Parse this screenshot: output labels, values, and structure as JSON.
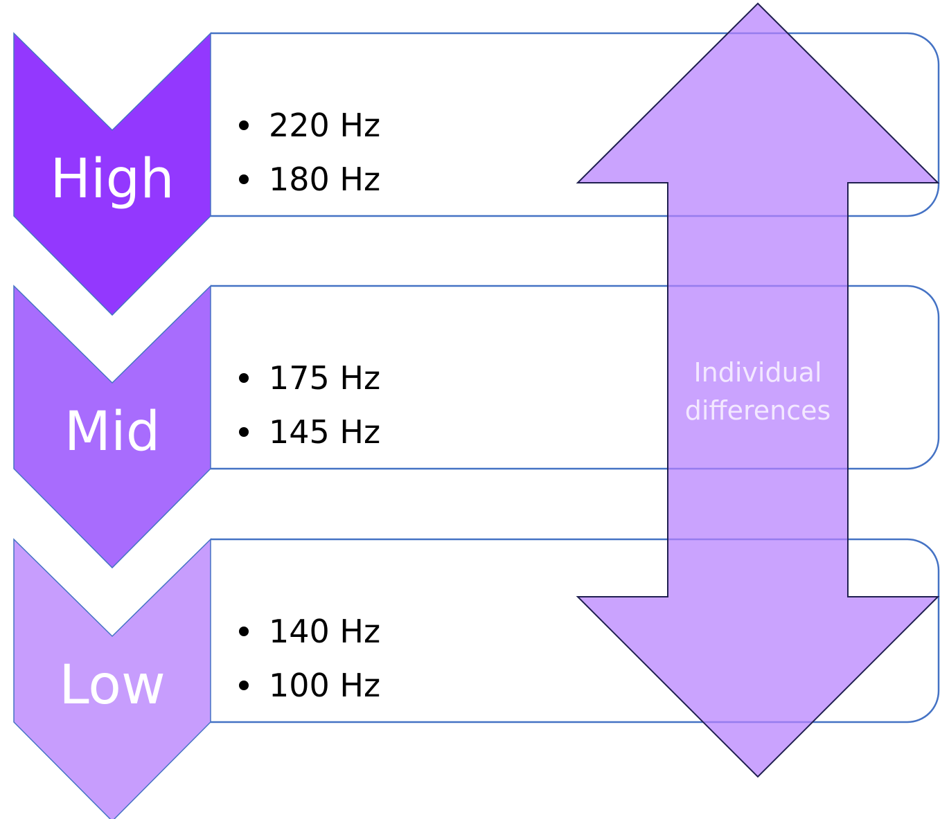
{
  "levels": [
    {
      "label": "High",
      "items": [
        "220 Hz",
        "180 Hz"
      ]
    },
    {
      "label": "Mid",
      "items": [
        "175 Hz",
        "145 Hz"
      ]
    },
    {
      "label": "Low",
      "items": [
        "140 Hz",
        "100 Hz"
      ]
    }
  ],
  "arrow": {
    "lines": [
      "Individual",
      "differences"
    ]
  }
}
